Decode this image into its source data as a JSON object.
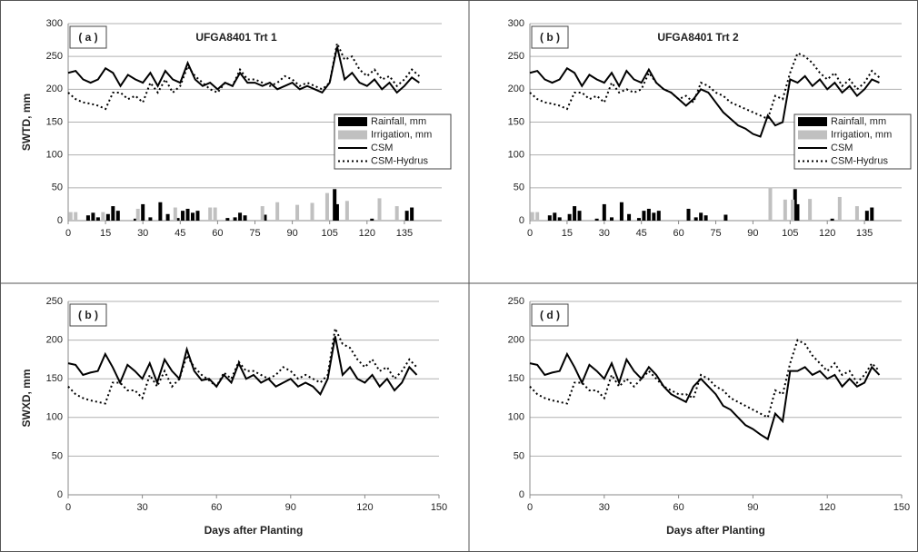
{
  "chart_data": [
    {
      "type": "combo",
      "panel_label": "( a )",
      "title": "UFGA8401 Trt 1",
      "ylabel": "SWTD, mm",
      "legend": true,
      "xlim": [
        0,
        150
      ],
      "xticks": [
        0,
        15,
        30,
        45,
        60,
        75,
        90,
        105,
        120,
        135
      ],
      "ylim": [
        0,
        300
      ],
      "yticks": [
        0,
        50,
        100,
        150,
        200,
        250,
        300
      ],
      "grid": true,
      "x": [
        0,
        3,
        6,
        9,
        12,
        15,
        18,
        21,
        24,
        27,
        30,
        33,
        36,
        39,
        42,
        45,
        48,
        51,
        54,
        57,
        60,
        63,
        66,
        69,
        72,
        75,
        78,
        81,
        84,
        87,
        90,
        93,
        96,
        99,
        102,
        105,
        108,
        111,
        114,
        117,
        120,
        123,
        126,
        129,
        132,
        135,
        138,
        141
      ],
      "series": [
        {
          "name": "Rainfall, mm",
          "kind": "bar",
          "color": "#000000",
          "x": [
            8,
            10,
            12,
            16,
            18,
            20,
            27,
            30,
            33,
            37,
            40,
            44,
            46,
            48,
            50,
            52,
            64,
            67,
            69,
            71,
            79,
            107,
            108,
            122,
            136,
            138
          ],
          "values": [
            8,
            12,
            5,
            10,
            22,
            15,
            3,
            25,
            5,
            28,
            10,
            4,
            15,
            18,
            12,
            15,
            4,
            5,
            12,
            8,
            9,
            48,
            25,
            3,
            15,
            20
          ]
        },
        {
          "name": "Irrigation, mm",
          "kind": "bar",
          "color": "#c0c0c0",
          "x": [
            1,
            3,
            14,
            28,
            43,
            57,
            59,
            78,
            84,
            92,
            98,
            104,
            112,
            125,
            132
          ],
          "values": [
            13,
            13,
            13,
            18,
            20,
            20,
            20,
            22,
            28,
            24,
            27,
            42,
            30,
            34,
            22
          ]
        },
        {
          "name": "CSM",
          "kind": "line",
          "color": "#000000",
          "dash": "none",
          "values": [
            225,
            228,
            215,
            210,
            215,
            232,
            225,
            205,
            222,
            215,
            210,
            225,
            205,
            228,
            215,
            210,
            240,
            215,
            205,
            210,
            200,
            210,
            205,
            225,
            210,
            210,
            205,
            210,
            200,
            205,
            210,
            200,
            205,
            200,
            195,
            210,
            265,
            215,
            225,
            210,
            205,
            215,
            200,
            210,
            195,
            205,
            218,
            210
          ]
        },
        {
          "name": "CSM-Hydrus",
          "kind": "line",
          "color": "#000000",
          "dash": "2 3",
          "values": [
            195,
            185,
            180,
            178,
            175,
            170,
            195,
            195,
            185,
            190,
            180,
            210,
            195,
            215,
            195,
            205,
            235,
            220,
            210,
            200,
            195,
            210,
            205,
            230,
            215,
            215,
            210,
            205,
            210,
            220,
            215,
            205,
            210,
            205,
            200,
            210,
            270,
            245,
            250,
            230,
            220,
            230,
            215,
            220,
            205,
            215,
            230,
            220
          ]
        }
      ]
    },
    {
      "type": "combo",
      "panel_label": "( b )",
      "title": "UFGA8401 Trt 2",
      "legend": true,
      "xlim": [
        0,
        150
      ],
      "xticks": [
        0,
        15,
        30,
        45,
        60,
        75,
        90,
        105,
        120,
        135
      ],
      "ylim": [
        0,
        300
      ],
      "yticks": [
        0,
        50,
        100,
        150,
        200,
        250,
        300
      ],
      "grid": true,
      "x": [
        0,
        3,
        6,
        9,
        12,
        15,
        18,
        21,
        24,
        27,
        30,
        33,
        36,
        39,
        42,
        45,
        48,
        51,
        54,
        57,
        60,
        63,
        66,
        69,
        72,
        75,
        78,
        81,
        84,
        87,
        90,
        93,
        96,
        99,
        102,
        105,
        108,
        111,
        114,
        117,
        120,
        123,
        126,
        129,
        132,
        135,
        138,
        141
      ],
      "series": [
        {
          "name": "Rainfall, mm",
          "kind": "bar",
          "color": "#000000",
          "x": [
            8,
            10,
            12,
            16,
            18,
            20,
            27,
            30,
            33,
            37,
            40,
            44,
            46,
            48,
            50,
            52,
            64,
            67,
            69,
            71,
            79,
            107,
            108,
            122,
            136,
            138
          ],
          "values": [
            8,
            12,
            5,
            10,
            22,
            15,
            3,
            25,
            5,
            28,
            10,
            4,
            15,
            18,
            12,
            15,
            18,
            5,
            12,
            8,
            9,
            48,
            25,
            3,
            15,
            20
          ]
        },
        {
          "name": "Irrigation, mm",
          "kind": "bar",
          "color": "#c0c0c0",
          "x": [
            1,
            3,
            97,
            103,
            106,
            113,
            125,
            132
          ],
          "values": [
            13,
            13,
            50,
            32,
            32,
            33,
            36,
            22
          ]
        },
        {
          "name": "CSM",
          "kind": "line",
          "color": "#000000",
          "dash": "none",
          "values": [
            225,
            228,
            215,
            210,
            215,
            232,
            225,
            205,
            222,
            215,
            210,
            225,
            205,
            228,
            215,
            210,
            230,
            210,
            200,
            195,
            185,
            175,
            185,
            200,
            195,
            180,
            165,
            155,
            145,
            140,
            132,
            128,
            160,
            145,
            150,
            215,
            210,
            220,
            205,
            215,
            200,
            210,
            195,
            205,
            190,
            200,
            215,
            210
          ]
        },
        {
          "name": "CSM-Hydrus",
          "kind": "line",
          "color": "#000000",
          "dash": "2 3",
          "values": [
            195,
            185,
            180,
            178,
            175,
            170,
            195,
            195,
            185,
            190,
            180,
            210,
            195,
            200,
            195,
            200,
            225,
            210,
            200,
            195,
            185,
            190,
            180,
            210,
            205,
            195,
            190,
            180,
            175,
            170,
            165,
            160,
            155,
            190,
            185,
            225,
            255,
            250,
            240,
            225,
            215,
            225,
            205,
            215,
            200,
            210,
            228,
            218
          ]
        }
      ]
    },
    {
      "type": "line",
      "panel_label": "( b )",
      "ylabel": "SWXD, mm",
      "xlabel": "Days after Planting",
      "xlim": [
        0,
        150
      ],
      "xticks": [
        0,
        30,
        60,
        90,
        120,
        150
      ],
      "ylim": [
        0,
        250
      ],
      "yticks": [
        0,
        50,
        100,
        150,
        200,
        250
      ],
      "grid": true,
      "x": [
        0,
        3,
        6,
        9,
        12,
        15,
        18,
        21,
        24,
        27,
        30,
        33,
        36,
        39,
        42,
        45,
        48,
        51,
        54,
        57,
        60,
        63,
        66,
        69,
        72,
        75,
        78,
        81,
        84,
        87,
        90,
        93,
        96,
        99,
        102,
        105,
        108,
        111,
        114,
        117,
        120,
        123,
        126,
        129,
        132,
        135,
        138,
        141
      ],
      "series": [
        {
          "kind": "line",
          "color": "#000000",
          "dash": "none",
          "values": [
            170,
            168,
            155,
            158,
            160,
            182,
            165,
            145,
            168,
            160,
            150,
            170,
            145,
            175,
            160,
            150,
            188,
            160,
            148,
            150,
            140,
            155,
            145,
            170,
            150,
            155,
            145,
            150,
            140,
            145,
            150,
            140,
            145,
            140,
            130,
            150,
            205,
            155,
            165,
            150,
            145,
            155,
            140,
            150,
            135,
            145,
            165,
            155
          ]
        },
        {
          "kind": "line",
          "color": "#000000",
          "dash": "2 3",
          "values": [
            140,
            130,
            125,
            122,
            120,
            118,
            145,
            145,
            135,
            135,
            125,
            155,
            140,
            160,
            140,
            150,
            180,
            165,
            155,
            148,
            140,
            158,
            150,
            172,
            160,
            160,
            155,
            150,
            155,
            165,
            160,
            150,
            155,
            150,
            145,
            155,
            215,
            195,
            190,
            175,
            165,
            175,
            160,
            165,
            150,
            160,
            175,
            165
          ]
        }
      ]
    },
    {
      "type": "line",
      "panel_label": "( d )",
      "xlabel": "Days after Planting",
      "xlim": [
        0,
        150
      ],
      "xticks": [
        0,
        30,
        60,
        90,
        120,
        150
      ],
      "ylim": [
        0,
        250
      ],
      "yticks": [
        0,
        50,
        100,
        150,
        200,
        250
      ],
      "grid": true,
      "x": [
        0,
        3,
        6,
        9,
        12,
        15,
        18,
        21,
        24,
        27,
        30,
        33,
        36,
        39,
        42,
        45,
        48,
        51,
        54,
        57,
        60,
        63,
        66,
        69,
        72,
        75,
        78,
        81,
        84,
        87,
        90,
        93,
        96,
        99,
        102,
        105,
        108,
        111,
        114,
        117,
        120,
        123,
        126,
        129,
        132,
        135,
        138,
        141
      ],
      "series": [
        {
          "kind": "line",
          "color": "#000000",
          "dash": "none",
          "values": [
            170,
            168,
            155,
            158,
            160,
            182,
            165,
            145,
            168,
            160,
            150,
            170,
            145,
            175,
            160,
            150,
            165,
            155,
            140,
            130,
            125,
            120,
            140,
            150,
            140,
            130,
            115,
            110,
            100,
            90,
            85,
            78,
            72,
            105,
            95,
            160,
            160,
            165,
            155,
            160,
            150,
            155,
            140,
            150,
            140,
            145,
            165,
            155
          ]
        },
        {
          "kind": "line",
          "color": "#000000",
          "dash": "2 3",
          "values": [
            140,
            130,
            125,
            122,
            120,
            118,
            145,
            145,
            135,
            135,
            125,
            155,
            140,
            150,
            140,
            150,
            160,
            150,
            140,
            135,
            130,
            130,
            125,
            155,
            150,
            140,
            135,
            125,
            120,
            115,
            110,
            105,
            100,
            135,
            130,
            170,
            200,
            195,
            180,
            170,
            160,
            170,
            155,
            160,
            145,
            155,
            170,
            160
          ]
        }
      ]
    }
  ]
}
